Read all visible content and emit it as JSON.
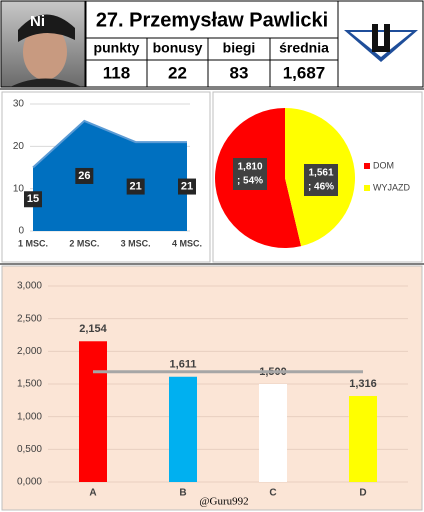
{
  "header": {
    "title": "27. Przemysław Pawlicki",
    "stats": [
      {
        "label": "punkty",
        "value": "118"
      },
      {
        "label": "bonusy",
        "value": "22"
      },
      {
        "label": "biegi",
        "value": "83"
      },
      {
        "label": "średnia",
        "value": "1,687"
      }
    ]
  },
  "chart_data": [
    {
      "type": "area",
      "categories": [
        "1 MSC.",
        "2 MSC.",
        "3 MSC.",
        "4 MSC."
      ],
      "values": [
        15,
        26,
        21,
        21
      ],
      "color": "#0070c0",
      "ylim": [
        0,
        30
      ],
      "yticks": [
        0,
        10,
        20,
        30
      ],
      "grid": true
    },
    {
      "type": "pie",
      "series": [
        {
          "name": "DOM",
          "color": "#ff0000"
        },
        {
          "name": "WYJAZD",
          "color": "#ffff00"
        }
      ],
      "values": [
        1.81,
        1.561
      ],
      "value_labels": [
        "1,810",
        "1,561"
      ],
      "percent_labels": [
        "; 54%",
        "; 46%"
      ],
      "legend": "right"
    },
    {
      "type": "bar",
      "categories": [
        "A",
        "B",
        "C",
        "D"
      ],
      "values": [
        2.154,
        1.611,
        1.5,
        1.316
      ],
      "value_labels": [
        "2,154",
        "1,611",
        "1,500",
        "1,316"
      ],
      "colors": [
        "#ff0000",
        "#00b0f0",
        "#ffffff",
        "#ffff00"
      ],
      "line": {
        "values": [
          1.687,
          1.687,
          1.687,
          1.687
        ],
        "color": "#a6a6a6"
      },
      "ylim": [
        0,
        3
      ],
      "yticks": [
        {
          "value": 0,
          "label": "0,000"
        },
        {
          "value": 0.5,
          "label": "0,500"
        },
        {
          "value": 1,
          "label": "1,000"
        },
        {
          "value": 1.5,
          "label": "1,500"
        },
        {
          "value": 2,
          "label": "2,000"
        },
        {
          "value": 2.5,
          "label": "2,500"
        },
        {
          "value": 3,
          "label": "3,000"
        }
      ],
      "grid": true,
      "annotation": "@Guru992"
    }
  ]
}
